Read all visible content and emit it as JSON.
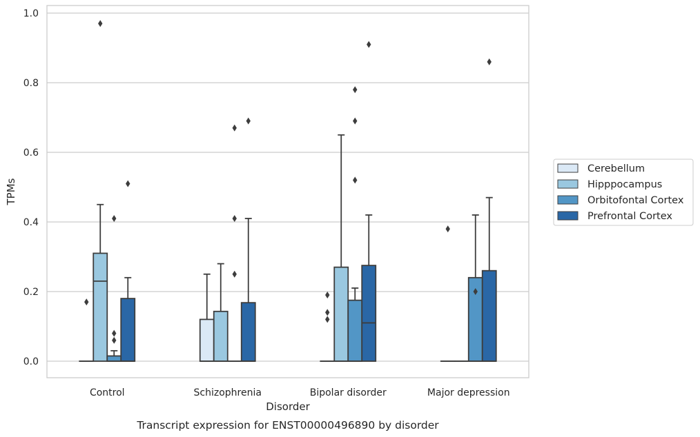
{
  "chart_data": {
    "type": "box",
    "title": "",
    "caption": "Transcript expression for ENST00000496890 by disorder",
    "xlabel": "Disorder",
    "ylabel": "TPMs",
    "ylim": [
      -0.048,
      1.02
    ],
    "yticks": [
      "0.0",
      "0.2",
      "0.4",
      "0.6",
      "0.8",
      "1.0"
    ],
    "ytick_values": [
      0.0,
      0.2,
      0.4,
      0.6,
      0.8,
      1.0
    ],
    "grid": "horizontal",
    "legend_position": "right",
    "categories": [
      "Control",
      "Schizophrenia",
      "Bipolar disorder",
      "Major depression"
    ],
    "series": [
      {
        "name": "Cerebellum",
        "color": "#dbe9f6",
        "boxes": [
          {
            "q1": 0.0,
            "median": 0.0,
            "q3": 0.0,
            "whislo": 0.0,
            "whishi": 0.0,
            "fliers": [
              0.17
            ]
          },
          {
            "q1": 0.0,
            "median": 0.0,
            "q3": 0.12,
            "whislo": 0.0,
            "whishi": 0.25,
            "fliers": []
          },
          {
            "q1": 0.0,
            "median": 0.0,
            "q3": 0.0,
            "whislo": 0.0,
            "whishi": 0.0,
            "fliers": [
              0.12,
              0.14,
              0.19
            ]
          },
          {
            "q1": 0.0,
            "median": 0.0,
            "q3": 0.0,
            "whislo": 0.0,
            "whishi": 0.0,
            "fliers": [
              0.38
            ]
          }
        ]
      },
      {
        "name": "Hipppocampus",
        "color": "#9ac8e0",
        "boxes": [
          {
            "q1": 0.0,
            "median": 0.23,
            "q3": 0.31,
            "whislo": 0.0,
            "whishi": 0.45,
            "fliers": [
              0.97
            ]
          },
          {
            "q1": 0.0,
            "median": 0.0,
            "q3": 0.143,
            "whislo": 0.0,
            "whishi": 0.28,
            "fliers": []
          },
          {
            "q1": 0.0,
            "median": 0.0,
            "q3": 0.27,
            "whislo": 0.0,
            "whishi": 0.65,
            "fliers": []
          },
          {
            "q1": 0.0,
            "median": 0.0,
            "q3": 0.0,
            "whislo": 0.0,
            "whishi": 0.0,
            "fliers": []
          }
        ]
      },
      {
        "name": "Orbitofontal Cortex",
        "color": "#5296c6",
        "boxes": [
          {
            "q1": 0.0,
            "median": 0.0,
            "q3": 0.015,
            "whislo": 0.0,
            "whishi": 0.03,
            "fliers": [
              0.06,
              0.08,
              0.41
            ]
          },
          {
            "q1": 0.0,
            "median": 0.0,
            "q3": 0.0,
            "whislo": 0.0,
            "whishi": 0.0,
            "fliers": [
              0.25,
              0.41,
              0.67
            ]
          },
          {
            "q1": 0.0,
            "median": 0.0,
            "q3": 0.175,
            "whislo": 0.0,
            "whishi": 0.21,
            "fliers": [
              0.52,
              0.69,
              0.78
            ]
          },
          {
            "q1": 0.0,
            "median": 0.0,
            "q3": 0.24,
            "whislo": 0.0,
            "whishi": 0.42,
            "fliers": [
              0.2
            ]
          }
        ]
      },
      {
        "name": "Prefrontal Cortex",
        "color": "#2a67a6",
        "boxes": [
          {
            "q1": 0.0,
            "median": 0.0,
            "q3": 0.18,
            "whislo": 0.0,
            "whishi": 0.24,
            "fliers": [
              0.51
            ]
          },
          {
            "q1": 0.0,
            "median": 0.0,
            "q3": 0.168,
            "whislo": 0.0,
            "whishi": 0.41,
            "fliers": [
              0.69
            ]
          },
          {
            "q1": 0.0,
            "median": 0.11,
            "q3": 0.275,
            "whislo": 0.0,
            "whishi": 0.42,
            "fliers": [
              0.91
            ]
          },
          {
            "q1": 0.0,
            "median": 0.0,
            "q3": 0.26,
            "whislo": 0.0,
            "whishi": 0.47,
            "fliers": [
              0.86
            ]
          }
        ]
      }
    ]
  }
}
